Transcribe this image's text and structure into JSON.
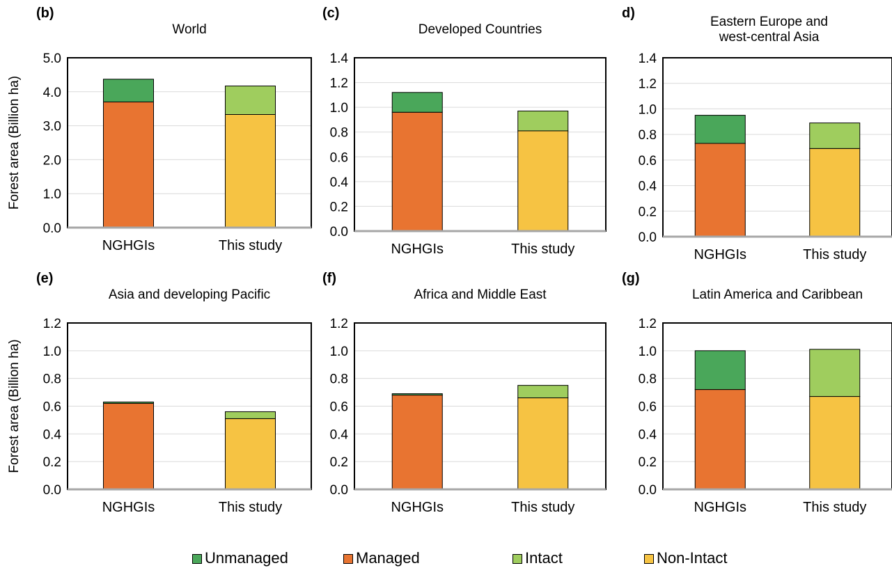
{
  "colors": {
    "unmanaged": "#4aa75a",
    "managed": "#e87431",
    "intact": "#9fcd5e",
    "non_intact": "#f6c343"
  },
  "legend": {
    "items": [
      {
        "key": "unmanaged",
        "label": "Unmanaged"
      },
      {
        "key": "managed",
        "label": "Managed"
      },
      {
        "key": "intact",
        "label": "Intact"
      },
      {
        "key": "non_intact",
        "label": "Non-Intact"
      }
    ]
  },
  "chart_data": [
    {
      "panel": "(b)",
      "title": "World",
      "type": "bar",
      "stacked": true,
      "categories": [
        "NGHGIs",
        "This study"
      ],
      "ylabel": "Forest area (Billion ha)",
      "ylim": [
        0,
        5
      ],
      "yticks": [
        "0.0",
        "1.0",
        "2.0",
        "3.0",
        "4.0",
        "5.0"
      ],
      "grid": true,
      "series": [
        {
          "name": "Managed",
          "values": [
            3.7,
            0
          ]
        },
        {
          "name": "Unmanaged",
          "values": [
            0.67,
            0
          ]
        },
        {
          "name": "Non-Intact",
          "values": [
            0,
            3.33
          ]
        },
        {
          "name": "Intact",
          "values": [
            0,
            0.84
          ]
        }
      ]
    },
    {
      "panel": "(c)",
      "title": "Developed Countries",
      "type": "bar",
      "stacked": true,
      "categories": [
        "NGHGIs",
        "This study"
      ],
      "ylabel": "",
      "ylim": [
        0,
        1.4
      ],
      "yticks": [
        "0.0",
        "0.2",
        "0.4",
        "0.6",
        "0.8",
        "1.0",
        "1.2",
        "1.4"
      ],
      "grid": true,
      "series": [
        {
          "name": "Managed",
          "values": [
            0.96,
            0
          ]
        },
        {
          "name": "Unmanaged",
          "values": [
            0.16,
            0
          ]
        },
        {
          "name": "Non-Intact",
          "values": [
            0,
            0.81
          ]
        },
        {
          "name": "Intact",
          "values": [
            0,
            0.16
          ]
        }
      ]
    },
    {
      "panel": "d)",
      "title": "Eastern Europe and\nwest-central Asia",
      "type": "bar",
      "stacked": true,
      "categories": [
        "NGHGIs",
        "This study"
      ],
      "ylabel": "",
      "ylim": [
        0,
        1.4
      ],
      "yticks": [
        "0.0",
        "0.2",
        "0.4",
        "0.6",
        "0.8",
        "1.0",
        "1.2",
        "1.4"
      ],
      "grid": true,
      "series": [
        {
          "name": "Managed",
          "values": [
            0.73,
            0
          ]
        },
        {
          "name": "Unmanaged",
          "values": [
            0.22,
            0
          ]
        },
        {
          "name": "Non-Intact",
          "values": [
            0,
            0.69
          ]
        },
        {
          "name": "Intact",
          "values": [
            0,
            0.2
          ]
        }
      ]
    },
    {
      "panel": "(e)",
      "title": "Asia and developing Pacific",
      "type": "bar",
      "stacked": true,
      "categories": [
        "NGHGIs",
        "This study"
      ],
      "ylabel": "Forest area (Billion ha)",
      "ylim": [
        0,
        1.2
      ],
      "yticks": [
        "0.0",
        "0.2",
        "0.4",
        "0.6",
        "0.8",
        "1.0",
        "1.2"
      ],
      "grid": true,
      "series": [
        {
          "name": "Managed",
          "values": [
            0.62,
            0
          ]
        },
        {
          "name": "Unmanaged",
          "values": [
            0.01,
            0
          ]
        },
        {
          "name": "Non-Intact",
          "values": [
            0,
            0.51
          ]
        },
        {
          "name": "Intact",
          "values": [
            0,
            0.05
          ]
        }
      ]
    },
    {
      "panel": "(f)",
      "title": "Africa and Middle East",
      "type": "bar",
      "stacked": true,
      "categories": [
        "NGHGIs",
        "This study"
      ],
      "ylabel": "",
      "ylim": [
        0,
        1.2
      ],
      "yticks": [
        "0.0",
        "0.2",
        "0.4",
        "0.6",
        "0.8",
        "1.0",
        "1.2"
      ],
      "grid": true,
      "series": [
        {
          "name": "Managed",
          "values": [
            0.68,
            0
          ]
        },
        {
          "name": "Unmanaged",
          "values": [
            0.01,
            0
          ]
        },
        {
          "name": "Non-Intact",
          "values": [
            0,
            0.66
          ]
        },
        {
          "name": "Intact",
          "values": [
            0,
            0.09
          ]
        }
      ]
    },
    {
      "panel": "(g)",
      "title": "Latin America and Caribbean",
      "type": "bar",
      "stacked": true,
      "categories": [
        "NGHGIs",
        "This study"
      ],
      "ylabel": "",
      "ylim": [
        0,
        1.2
      ],
      "yticks": [
        "0.0",
        "0.2",
        "0.4",
        "0.6",
        "0.8",
        "1.0",
        "1.2"
      ],
      "grid": true,
      "series": [
        {
          "name": "Managed",
          "values": [
            0.72,
            0
          ]
        },
        {
          "name": "Unmanaged",
          "values": [
            0.28,
            0
          ]
        },
        {
          "name": "Non-Intact",
          "values": [
            0,
            0.67
          ]
        },
        {
          "name": "Intact",
          "values": [
            0,
            0.34
          ]
        }
      ]
    }
  ]
}
